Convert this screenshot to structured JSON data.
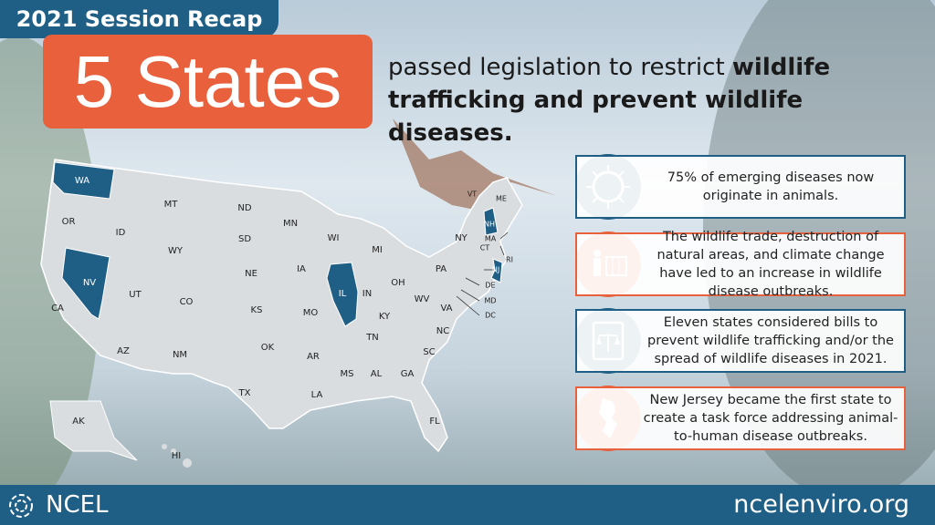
{
  "header": {
    "tag": "2021 Session Recap",
    "big": "5 States",
    "headline": {
      "regular": "passed legislation to restrict ",
      "bold": "wildlife trafficking and prevent wildlife diseases."
    }
  },
  "map": {
    "states": [
      {
        "label": "WA",
        "highlighted": true
      },
      {
        "label": "OR",
        "highlighted": false
      },
      {
        "label": "CA",
        "highlighted": false
      },
      {
        "label": "NV",
        "highlighted": true
      },
      {
        "label": "ID",
        "highlighted": false
      },
      {
        "label": "MT",
        "highlighted": false
      },
      {
        "label": "WY",
        "highlighted": false
      },
      {
        "label": "UT",
        "highlighted": false
      },
      {
        "label": "CO",
        "highlighted": false
      },
      {
        "label": "AZ",
        "highlighted": false
      },
      {
        "label": "NM",
        "highlighted": false
      },
      {
        "label": "ND",
        "highlighted": false
      },
      {
        "label": "SD",
        "highlighted": false
      },
      {
        "label": "NE",
        "highlighted": false
      },
      {
        "label": "KS",
        "highlighted": false
      },
      {
        "label": "OK",
        "highlighted": false
      },
      {
        "label": "TX",
        "highlighted": false
      },
      {
        "label": "MN",
        "highlighted": false
      },
      {
        "label": "IA",
        "highlighted": false
      },
      {
        "label": "MO",
        "highlighted": false
      },
      {
        "label": "AR",
        "highlighted": false
      },
      {
        "label": "LA",
        "highlighted": false
      },
      {
        "label": "WI",
        "highlighted": false
      },
      {
        "label": "IL",
        "highlighted": true
      },
      {
        "label": "MI",
        "highlighted": false
      },
      {
        "label": "IN",
        "highlighted": false
      },
      {
        "label": "OH",
        "highlighted": false
      },
      {
        "label": "KY",
        "highlighted": false
      },
      {
        "label": "TN",
        "highlighted": false
      },
      {
        "label": "MS",
        "highlighted": false
      },
      {
        "label": "AL",
        "highlighted": false
      },
      {
        "label": "GA",
        "highlighted": false
      },
      {
        "label": "FL",
        "highlighted": false
      },
      {
        "label": "SC",
        "highlighted": false
      },
      {
        "label": "NC",
        "highlighted": false
      },
      {
        "label": "VA",
        "highlighted": false
      },
      {
        "label": "WV",
        "highlighted": false
      },
      {
        "label": "PA",
        "highlighted": false
      },
      {
        "label": "NY",
        "highlighted": false
      },
      {
        "label": "VT",
        "highlighted": false
      },
      {
        "label": "NH",
        "highlighted": true
      },
      {
        "label": "ME",
        "highlighted": false
      },
      {
        "label": "MA",
        "highlighted": false
      },
      {
        "label": "CT",
        "highlighted": false
      },
      {
        "label": "RI",
        "highlighted": false
      },
      {
        "label": "NJ",
        "highlighted": true
      },
      {
        "label": "DE",
        "highlighted": false
      },
      {
        "label": "MD",
        "highlighted": false
      },
      {
        "label": "DC",
        "highlighted": false
      },
      {
        "label": "AK",
        "highlighted": false
      },
      {
        "label": "HI",
        "highlighted": false
      }
    ]
  },
  "facts": [
    {
      "text": "75% of emerging diseases now originate in animals.",
      "color": "#1f5f85"
    },
    {
      "text": "The wildlife trade, destruction of natural areas, and climate change have led to an increase in wildlife disease outbreaks.",
      "color": "#e8603c"
    },
    {
      "text": "Eleven states considered bills to prevent wildlife trafficking and/or the spread of wildlife diseases in 2021.",
      "color": "#1f5f85"
    },
    {
      "text": "New Jersey became the first state to create a task force addressing animal-to-human disease outbreaks.",
      "color": "#e8603c"
    }
  ],
  "footer": {
    "logo": "NCEL",
    "url": "ncelenviro.org"
  }
}
